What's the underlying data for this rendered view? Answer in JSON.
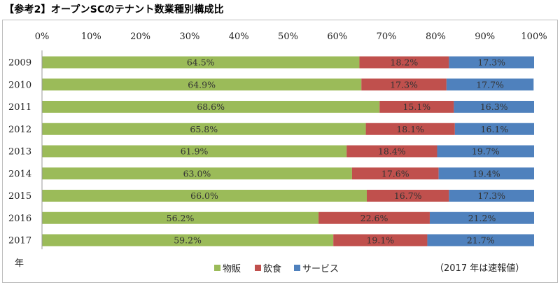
{
  "title": "【参考2】オープンSCのテナント数業種別構成比",
  "y_unit_label": "年",
  "note": "（2017 年は速報値）",
  "chart_data": {
    "type": "bar",
    "orientation": "horizontal",
    "stacked": "percent",
    "categories": [
      "2009",
      "2010",
      "2011",
      "2012",
      "2013",
      "2014",
      "2015",
      "2016",
      "2017"
    ],
    "x_ticks": [
      "0%",
      "10%",
      "20%",
      "30%",
      "40%",
      "50%",
      "60%",
      "70%",
      "80%",
      "90%",
      "100%"
    ],
    "xlim": [
      0,
      100
    ],
    "legend_position": "bottom",
    "series": [
      {
        "name": "物販",
        "color": "#9BBB59",
        "values": [
          64.5,
          64.9,
          68.6,
          65.8,
          61.9,
          63.0,
          66.0,
          56.2,
          59.2
        ],
        "labels": [
          "64.5%",
          "64.9%",
          "68.6%",
          "65.8%",
          "61.9%",
          "63.0%",
          "66.0%",
          "56.2%",
          "59.2%"
        ]
      },
      {
        "name": "飲食",
        "color": "#C0504D",
        "values": [
          18.2,
          17.3,
          15.1,
          18.1,
          18.4,
          17.6,
          16.7,
          22.6,
          19.1
        ],
        "labels": [
          "18.2%",
          "17.3%",
          "15.1%",
          "18.1%",
          "18.4%",
          "17.6%",
          "16.7%",
          "22.6%",
          "19.1%"
        ]
      },
      {
        "name": "サービス",
        "color": "#4F81BD",
        "values": [
          17.3,
          17.7,
          16.3,
          16.1,
          19.7,
          19.4,
          17.3,
          21.2,
          21.7
        ],
        "labels": [
          "17.3%",
          "17.7%",
          "16.3%",
          "16.1%",
          "19.7%",
          "19.4%",
          "17.3%",
          "21.2%",
          "21.7%"
        ]
      }
    ]
  }
}
